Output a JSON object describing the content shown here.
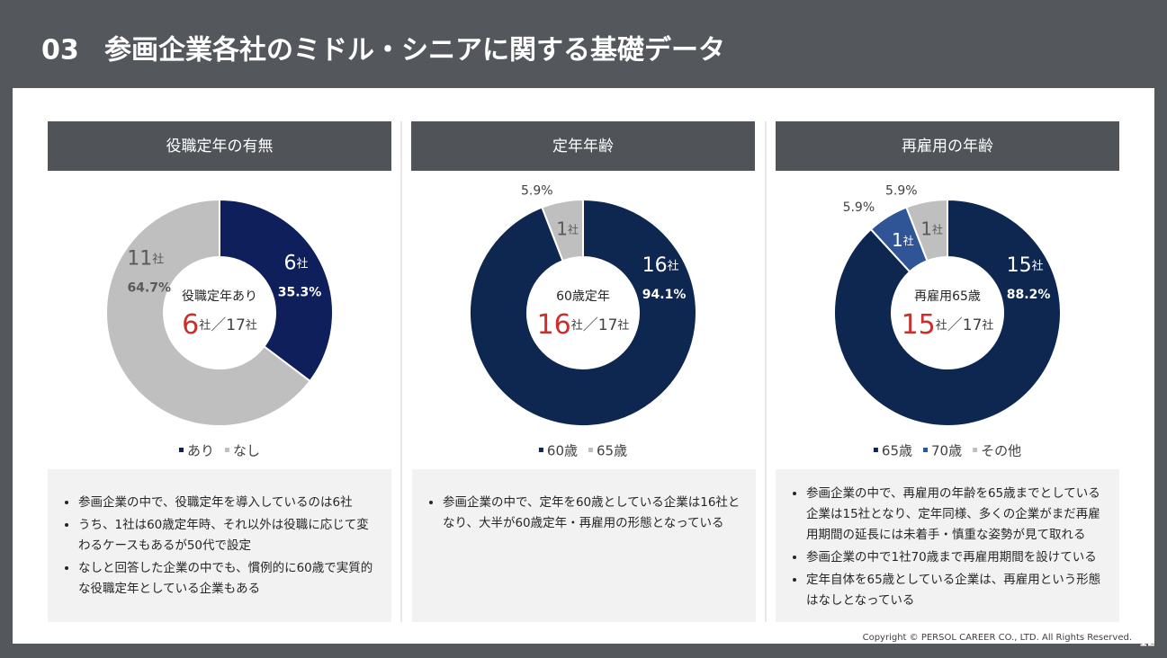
{
  "section_number": "03",
  "title": "参画企業各社のミドル・シニアに関する基礎データ",
  "chart_data": [
    {
      "type": "donut",
      "title": "役職定年の有無",
      "categories": [
        "あり",
        "なし"
      ],
      "colors": [
        "#0f1f5c",
        "#bfbfbf"
      ],
      "values": [
        35.3,
        64.7
      ],
      "value_labels": [
        "35.3%",
        "64.7%"
      ],
      "counts": [
        6,
        11
      ],
      "unit": "社",
      "center_label": "役職定年あり",
      "center_count": 6,
      "separator": "／",
      "total": 17
    },
    {
      "type": "donut",
      "title": "定年年齢",
      "categories": [
        "60歳",
        "65歳"
      ],
      "colors": [
        "#0d2750",
        "#bfbfbf"
      ],
      "values": [
        94.1,
        5.9
      ],
      "value_labels": [
        "94.1%",
        "5.9%"
      ],
      "counts": [
        16,
        1
      ],
      "unit": "社",
      "center_label": "60歳定年",
      "center_count": 16,
      "separator": "／",
      "total": 17
    },
    {
      "type": "donut",
      "title": "再雇用の年齢",
      "categories": [
        "65歳",
        "70歳",
        "その他"
      ],
      "colors": [
        "#0d2750",
        "#2f5597",
        "#bfbfbf"
      ],
      "values": [
        88.2,
        5.9,
        5.9
      ],
      "value_labels": [
        "88.2%",
        "5.9%",
        "5.9%"
      ],
      "counts": [
        15,
        1,
        1
      ],
      "unit": "社",
      "center_label": "再雇用65歳",
      "center_count": 15,
      "separator": "／",
      "total": 17
    }
  ],
  "notes": [
    [
      "参画企業の中で、役職定年を導入しているのは6社",
      "うち、1社は60歳定年時、それ以外は役職に応じて変わるケースもあるが50代で設定",
      "なしと回答した企業の中でも、慣例的に60歳で実質的な役職定年としている企業もある"
    ],
    [
      "参画企業の中で、定年を60歳としている企業は16社となり、大半が60歳定年・再雇用の形態となっている"
    ],
    [
      "参画企業の中で、再雇用の年齢を65歳までとしている企業は15社となり、定年同様、多くの企業がまだ再雇用期間の延長には未着手・慎重な姿勢が見て取れる",
      "参画企業の中で1社70歳まで再雇用期間を設けている",
      "定年自体を65歳としている企業は、再雇用という形態はなしとなっている"
    ]
  ],
  "footer": {
    "copyright": "Copyright © PERSOL CAREER CO., LTD. All Rights Reserved.",
    "page": 12
  }
}
